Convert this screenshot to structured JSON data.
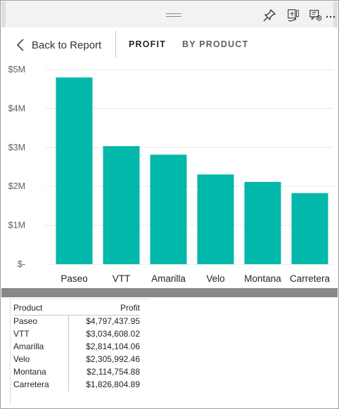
{
  "header": {
    "icons": [
      "grip-icon",
      "pin-icon",
      "focus-mode-icon",
      "comment-icon",
      "more-options-icon"
    ]
  },
  "nav": {
    "back_label": "Back to Report",
    "title": "PROFIT",
    "subtitle": "BY PRODUCT"
  },
  "chart_data": {
    "type": "bar",
    "title": "",
    "xlabel": "",
    "ylabel": "",
    "categories": [
      "Paseo",
      "VTT",
      "Amarilla",
      "Velo",
      "Montana",
      "Carretera"
    ],
    "values": [
      4797437.95,
      3034608.02,
      2814104.06,
      2305992.46,
      2114754.88,
      1826804.89
    ],
    "ylim": [
      0,
      5000000
    ],
    "yticks": [
      0,
      1000000,
      2000000,
      3000000,
      4000000,
      5000000
    ],
    "ytick_labels": [
      "$-",
      "$1M",
      "$2M",
      "$3M",
      "$4M",
      "$5M"
    ],
    "bar_color": "#01b8aa",
    "grid": true,
    "legend": "none"
  },
  "table": {
    "headers": [
      "Product",
      "Profit"
    ],
    "rows": [
      {
        "product": "Paseo",
        "profit": "$4,797,437.95"
      },
      {
        "product": "VTT",
        "profit": "$3,034,608.02"
      },
      {
        "product": "Amarilla",
        "profit": "$2,814,104.06"
      },
      {
        "product": "Velo",
        "profit": "$2,305,992.46"
      },
      {
        "product": "Montana",
        "profit": "$2,114,754.88"
      },
      {
        "product": "Carretera",
        "profit": "$1,826,804.89"
      }
    ]
  }
}
